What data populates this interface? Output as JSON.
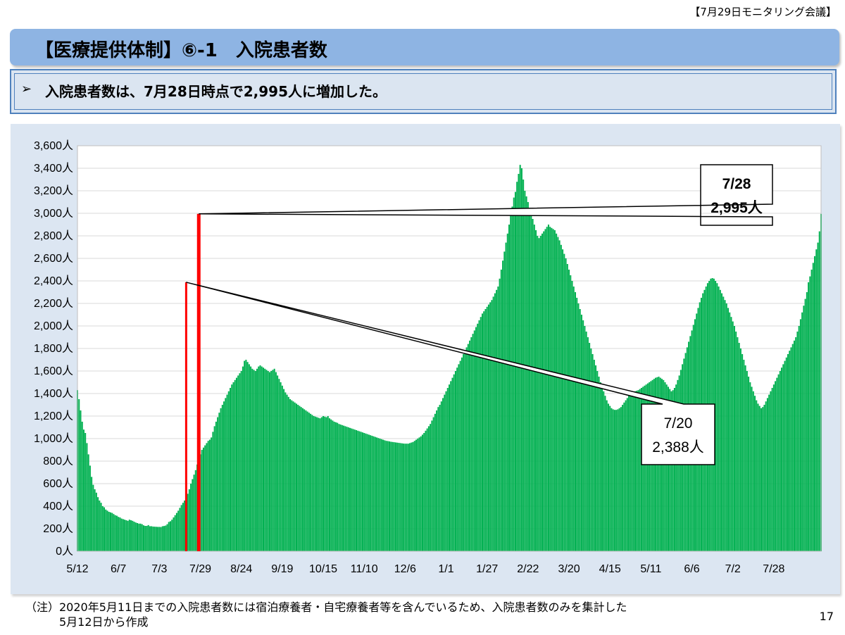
{
  "meeting_label": "【7月29日モニタリング会議】",
  "title": "【医療提供体制】⑥-1　入院患者数",
  "summary": {
    "bullet": "➢",
    "text": "入院患者数は、7月28日時点で2,995人に増加した。"
  },
  "footnote": {
    "line1": "（注）2020年5月11日までの入院患者数には宿泊療養者・自宅療養者等を含んでいるため、入院患者数のみを集計した",
    "line2": "5月12日から作成"
  },
  "page_number": "17",
  "colors": {
    "bar": "#00b050",
    "highlight": "#ff0000",
    "title_bar": "#8eb4e3",
    "panel": "#dce6f2"
  },
  "chart_data": {
    "type": "bar",
    "title": "",
    "xlabel": "",
    "ylabel": "",
    "ylim": [
      0,
      3600
    ],
    "y_ticks": [
      "0人",
      "200人",
      "400人",
      "600人",
      "800人",
      "1,000人",
      "1,200人",
      "1,400人",
      "1,600人",
      "1,800人",
      "2,000人",
      "2,200人",
      "2,400人",
      "2,600人",
      "2,800人",
      "3,000人",
      "3,200人",
      "3,400人",
      "3,600人"
    ],
    "x_tick_labels": [
      "5/12",
      "6/7",
      "7/3",
      "7/29",
      "8/24",
      "9/19",
      "10/15",
      "11/10",
      "12/6",
      "1/1",
      "1/27",
      "2/22",
      "3/20",
      "4/15",
      "5/11",
      "6/6",
      "7/2",
      "7/28"
    ],
    "grid": true,
    "start_date": "2020-05-12",
    "series": [
      {
        "values": [
          1430,
          1350,
          1250,
          1150,
          1080,
          1050,
          960,
          860,
          760,
          660,
          590,
          550,
          520,
          480,
          450,
          430,
          400,
          390,
          370,
          360,
          350,
          345,
          340,
          330,
          320,
          315,
          305,
          300,
          290,
          285,
          280,
          275,
          270,
          280,
          275,
          270,
          262,
          255,
          250,
          245,
          245,
          240,
          230,
          225,
          225,
          232,
          222,
          222,
          219,
          218,
          217,
          216,
          216,
          215,
          222,
          224,
          228,
          240,
          260,
          266,
          280,
          300,
          320,
          340,
          360,
          385,
          410,
          430,
          450,
          480,
          510,
          550,
          600,
          640,
          680,
          720,
          770,
          820,
          860,
          900,
          920,
          940,
          960,
          980,
          990,
          1010,
          1060,
          1110,
          1150,
          1190,
          1230,
          1270,
          1300,
          1330,
          1360,
          1390,
          1420,
          1450,
          1480,
          1500,
          1520,
          1540,
          1560,
          1580,
          1600,
          1640,
          1690,
          1700,
          1680,
          1660,
          1640,
          1620,
          1610,
          1600,
          1620,
          1640,
          1650,
          1640,
          1630,
          1620,
          1610,
          1600,
          1590,
          1600,
          1610,
          1620,
          1590,
          1560,
          1530,
          1500,
          1470,
          1440,
          1410,
          1390,
          1370,
          1350,
          1340,
          1330,
          1320,
          1310,
          1300,
          1290,
          1280,
          1270,
          1260,
          1250,
          1240,
          1230,
          1220,
          1210,
          1200,
          1195,
          1190,
          1185,
          1180,
          1190,
          1200,
          1195,
          1190,
          1200,
          1180,
          1170,
          1160,
          1150,
          1145,
          1140,
          1130,
          1125,
          1120,
          1115,
          1110,
          1105,
          1100,
          1095,
          1090,
          1085,
          1080,
          1075,
          1070,
          1065,
          1060,
          1055,
          1050,
          1045,
          1040,
          1035,
          1030,
          1025,
          1020,
          1015,
          1010,
          1005,
          1000,
          995,
          990,
          985,
          980,
          978,
          975,
          972,
          970,
          968,
          966,
          964,
          962,
          960,
          958,
          956,
          955,
          955,
          955,
          960,
          965,
          970,
          980,
          990,
          1000,
          1010,
          1020,
          1035,
          1050,
          1070,
          1090,
          1110,
          1130,
          1160,
          1190,
          1220,
          1250,
          1280,
          1300,
          1330,
          1360,
          1390,
          1420,
          1450,
          1480,
          1510,
          1540,
          1570,
          1600,
          1630,
          1660,
          1690,
          1720,
          1750,
          1780,
          1810,
          1840,
          1870,
          1900,
          1930,
          1960,
          1990,
          2020,
          2050,
          2080,
          2110,
          2130,
          2150,
          2170,
          2190,
          2210,
          2230,
          2260,
          2290,
          2320,
          2350,
          2420,
          2500,
          2580,
          2660,
          2740,
          2820,
          2900,
          2980,
          3060,
          3140,
          3190,
          3280,
          3350,
          3430,
          3400,
          3300,
          3200,
          3150,
          3100,
          3050,
          3000,
          2950,
          2900,
          2850,
          2800,
          2780,
          2800,
          2820,
          2840,
          2860,
          2880,
          2900,
          2880,
          2870,
          2860,
          2850,
          2820,
          2790,
          2760,
          2720,
          2680,
          2640,
          2600,
          2550,
          2500,
          2450,
          2400,
          2350,
          2300,
          2250,
          2200,
          2150,
          2100,
          2050,
          2000,
          1950,
          1900,
          1850,
          1800,
          1750,
          1700,
          1650,
          1600,
          1550,
          1500,
          1460,
          1420,
          1380,
          1340,
          1310,
          1290,
          1270,
          1260,
          1255,
          1255,
          1260,
          1270,
          1280,
          1300,
          1320,
          1340,
          1360,
          1380,
          1395,
          1405,
          1415,
          1420,
          1425,
          1430,
          1440,
          1450,
          1460,
          1470,
          1480,
          1490,
          1500,
          1510,
          1520,
          1530,
          1540,
          1545,
          1550,
          1540,
          1530,
          1520,
          1500,
          1480,
          1460,
          1440,
          1420,
          1430,
          1450,
          1480,
          1520,
          1560,
          1610,
          1660,
          1710,
          1760,
          1810,
          1860,
          1910,
          1960,
          2010,
          2060,
          2110,
          2160,
          2210,
          2250,
          2290,
          2320,
          2350,
          2380,
          2400,
          2420,
          2425,
          2420,
          2400,
          2380,
          2350,
          2320,
          2290,
          2260,
          2230,
          2200,
          2160,
          2120,
          2080,
          2040,
          2000,
          1950,
          1900,
          1850,
          1800,
          1750,
          1700,
          1650,
          1600,
          1550,
          1500,
          1460,
          1420,
          1380,
          1340,
          1310,
          1290,
          1270,
          1280,
          1300,
          1330,
          1360,
          1390,
          1420,
          1450,
          1480,
          1510,
          1540,
          1570,
          1600,
          1630,
          1660,
          1690,
          1720,
          1750,
          1780,
          1810,
          1840,
          1870,
          1900,
          1950,
          2000,
          2060,
          2120,
          2180,
          2240,
          2300,
          2388,
          2440,
          2500,
          2560,
          2620,
          2680,
          2740,
          2840,
          2995
        ]
      }
    ],
    "annotations": [
      {
        "date": "7/28",
        "text_value": "2,995人",
        "value": 2995
      },
      {
        "date": "7/20",
        "text_value": "2,388人",
        "value": 2388
      }
    ]
  }
}
